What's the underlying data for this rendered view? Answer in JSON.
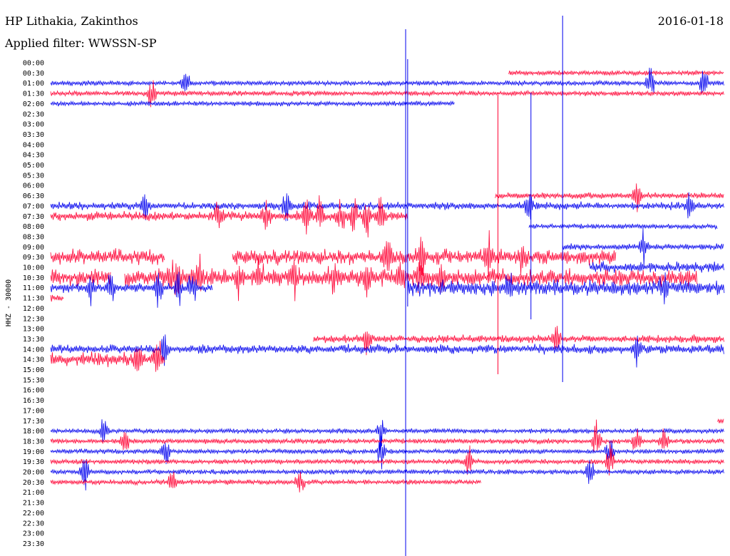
{
  "header": {
    "station": "HP Lithakia, Zakinthos",
    "filter": "Applied filter: WWSSN-SP",
    "date": "2016-01-18"
  },
  "chart_data": {
    "type": "line",
    "title": "HP Lithakia, Zakinthos",
    "subtitle": "Applied filter: WWSSN-SP",
    "date": "2016-01-18",
    "ylabel": "HHZ - 30000",
    "colors": {
      "blue": "#0000ee",
      "red": "#ff0033"
    },
    "ticks": [
      "00:00",
      "00:30",
      "01:00",
      "01:30",
      "02:00",
      "02:30",
      "03:00",
      "03:30",
      "04:00",
      "04:30",
      "05:00",
      "05:30",
      "06:00",
      "06:30",
      "07:00",
      "07:30",
      "08:00",
      "08:30",
      "09:00",
      "09:30",
      "10:00",
      "10:30",
      "11:00",
      "11:30",
      "12:00",
      "12:30",
      "13:00",
      "13:30",
      "14:00",
      "14:30",
      "15:00",
      "15:30",
      "16:00",
      "16:30",
      "17:00",
      "17:30",
      "18:00",
      "18:30",
      "19:00",
      "19:30",
      "20:00",
      "20:30",
      "21:00",
      "21:30",
      "22:00",
      "22:30",
      "23:00",
      "23:30"
    ],
    "x_range_minutes": [
      0,
      30
    ],
    "traces": [
      {
        "row": 1,
        "color": "red",
        "start": 0.68,
        "end": 1.0,
        "amp": 4,
        "noise": "quiet"
      },
      {
        "row": 2,
        "color": "blue",
        "start": 0.0,
        "end": 1.0,
        "amp": 4,
        "noise": "quiet",
        "bursts": [
          0.2,
          0.89,
          0.97
        ]
      },
      {
        "row": 3,
        "color": "red",
        "start": 0.0,
        "end": 1.0,
        "amp": 4,
        "noise": "quiet",
        "bursts": [
          0.15
        ]
      },
      {
        "row": 4,
        "color": "blue",
        "start": 0.0,
        "end": 0.6,
        "amp": 4,
        "noise": "quiet"
      },
      {
        "row": 13,
        "color": "red",
        "start": 0.66,
        "end": 1.0,
        "amp": 5,
        "noise": "quiet",
        "bursts": [
          0.87
        ]
      },
      {
        "row": 14,
        "color": "blue",
        "start": 0.0,
        "end": 1.0,
        "amp": 5,
        "noise": "medium",
        "bursts": [
          0.35,
          0.14,
          0.71,
          0.95
        ]
      },
      {
        "row": 15,
        "color": "red",
        "start": 0.0,
        "end": 0.53,
        "amp": 6,
        "noise": "medium",
        "bursts": [
          0.25,
          0.32,
          0.38,
          0.4,
          0.43,
          0.45,
          0.47,
          0.49
        ]
      },
      {
        "row": 16,
        "color": "blue",
        "start": 0.71,
        "end": 0.99,
        "amp": 4,
        "noise": "quiet"
      },
      {
        "row": 18,
        "color": "blue",
        "start": 0.76,
        "end": 1.0,
        "amp": 5,
        "noise": "quiet",
        "bursts": [
          0.88
        ]
      },
      {
        "row": 19,
        "color": "red",
        "start": 0.0,
        "end": 0.17,
        "amp": 9,
        "noise": "loud"
      },
      {
        "row": 19,
        "color": "red",
        "start": 0.27,
        "end": 0.84,
        "amp": 9,
        "noise": "loud",
        "bursts": [
          0.5,
          0.55,
          0.65,
          0.7
        ]
      },
      {
        "row": 20,
        "color": "blue",
        "start": 0.8,
        "end": 1.0,
        "amp": 7,
        "noise": "loud"
      },
      {
        "row": 21,
        "color": "red",
        "start": 0.0,
        "end": 0.09,
        "amp": 10,
        "noise": "loud"
      },
      {
        "row": 21,
        "color": "red",
        "start": 0.11,
        "end": 0.96,
        "amp": 10,
        "noise": "loud",
        "bursts": [
          0.18,
          0.19,
          0.22,
          0.28,
          0.31,
          0.36,
          0.42,
          0.47,
          0.52,
          0.55,
          0.58
        ]
      },
      {
        "row": 22,
        "color": "blue",
        "start": 0.0,
        "end": 0.24,
        "amp": 6,
        "noise": "medium",
        "bursts": [
          0.06,
          0.09,
          0.16,
          0.19,
          0.21
        ]
      },
      {
        "row": 22,
        "color": "blue",
        "start": 0.53,
        "end": 1.0,
        "amp": 9,
        "noise": "loud",
        "bursts": [
          0.68,
          0.91
        ]
      },
      {
        "row": 23,
        "color": "red",
        "start": 0.0,
        "end": 0.02,
        "amp": 4,
        "noise": "medium"
      },
      {
        "row": 27,
        "color": "red",
        "start": 0.39,
        "end": 1.0,
        "amp": 5,
        "noise": "medium",
        "bursts": [
          0.47,
          0.75
        ]
      },
      {
        "row": 28,
        "color": "blue",
        "start": 0.0,
        "end": 1.0,
        "amp": 6,
        "noise": "medium",
        "bursts": [
          0.17,
          0.87
        ]
      },
      {
        "row": 29,
        "color": "red",
        "start": 0.0,
        "end": 0.17,
        "amp": 9,
        "noise": "loud",
        "bursts": [
          0.13,
          0.16
        ]
      },
      {
        "row": 35,
        "color": "red",
        "start": 0.99,
        "end": 1.0,
        "amp": 4,
        "noise": "quiet"
      },
      {
        "row": 36,
        "color": "blue",
        "start": 0.0,
        "end": 1.0,
        "amp": 4,
        "noise": "quiet",
        "bursts": [
          0.08,
          0.49
        ]
      },
      {
        "row": 37,
        "color": "red",
        "start": 0.0,
        "end": 1.0,
        "amp": 4,
        "noise": "quiet",
        "bursts": [
          0.11,
          0.81,
          0.87,
          0.91
        ]
      },
      {
        "row": 38,
        "color": "blue",
        "start": 0.0,
        "end": 1.0,
        "amp": 4,
        "noise": "quiet",
        "bursts": [
          0.17,
          0.49,
          0.83
        ]
      },
      {
        "row": 39,
        "color": "red",
        "start": 0.0,
        "end": 1.0,
        "amp": 4,
        "noise": "quiet",
        "bursts": [
          0.62,
          0.83
        ]
      },
      {
        "row": 40,
        "color": "blue",
        "start": 0.0,
        "end": 1.0,
        "amp": 4,
        "noise": "quiet",
        "bursts": [
          0.05,
          0.8
        ]
      },
      {
        "row": 41,
        "color": "red",
        "start": 0.0,
        "end": 0.64,
        "amp": 4,
        "noise": "quiet",
        "bursts": [
          0.18,
          0.37
        ]
      }
    ],
    "spikes": [
      {
        "row": 3,
        "x": 0.53,
        "color": "blue",
        "up": 3,
        "down": 51
      },
      {
        "row": 2,
        "x": 0.68,
        "color": "blue",
        "up": 7,
        "down": 29
      },
      {
        "row": 3,
        "x": 0.66,
        "color": "red",
        "up": 0,
        "down": 28
      },
      {
        "row": 2,
        "x": 0.72,
        "color": "blue",
        "up": 0,
        "down": 23
      },
      {
        "row": 4,
        "x": 0.53,
        "color": "blue",
        "up": 0,
        "down": 0
      }
    ]
  }
}
